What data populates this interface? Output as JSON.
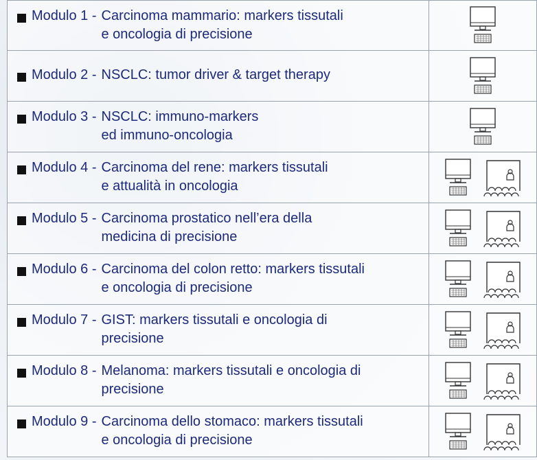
{
  "modules": [
    {
      "label": "Modulo 1 -",
      "title": [
        "Carcinoma mammario: markers tissutali",
        "e oncologia di precisione"
      ]
    },
    {
      "label": "Modulo 2 -",
      "title": [
        "NSCLC: tumor driver & target therapy"
      ]
    },
    {
      "label": "Modulo 3 -",
      "title": [
        "NSCLC: immuno-markers",
        "ed immuno-oncologia"
      ]
    },
    {
      "label": "Modulo 4 -",
      "title": [
        "Carcinoma del rene: markers tissutali",
        "e attualità in oncologia"
      ]
    },
    {
      "label": "Modulo 5 -",
      "title": [
        "Carcinoma prostatico nell’era della",
        "medicina di precisione"
      ]
    },
    {
      "label": "Modulo 6 -",
      "title": [
        "Carcinoma del colon retto: markers tissutali",
        "e oncologia di precisione"
      ]
    },
    {
      "label": "Modulo 7 -",
      "title": [
        "GIST: markers tissutali e oncologia di",
        "precisione"
      ]
    },
    {
      "label": "Modulo 8 -",
      "title": [
        "Melanoma: markers tissutali e oncologia di",
        "precisione"
      ]
    },
    {
      "label": "Modulo 9 -",
      "title": [
        "Carcinoma dello stomaco: markers tissutali",
        "e oncologia di precisione"
      ]
    }
  ]
}
